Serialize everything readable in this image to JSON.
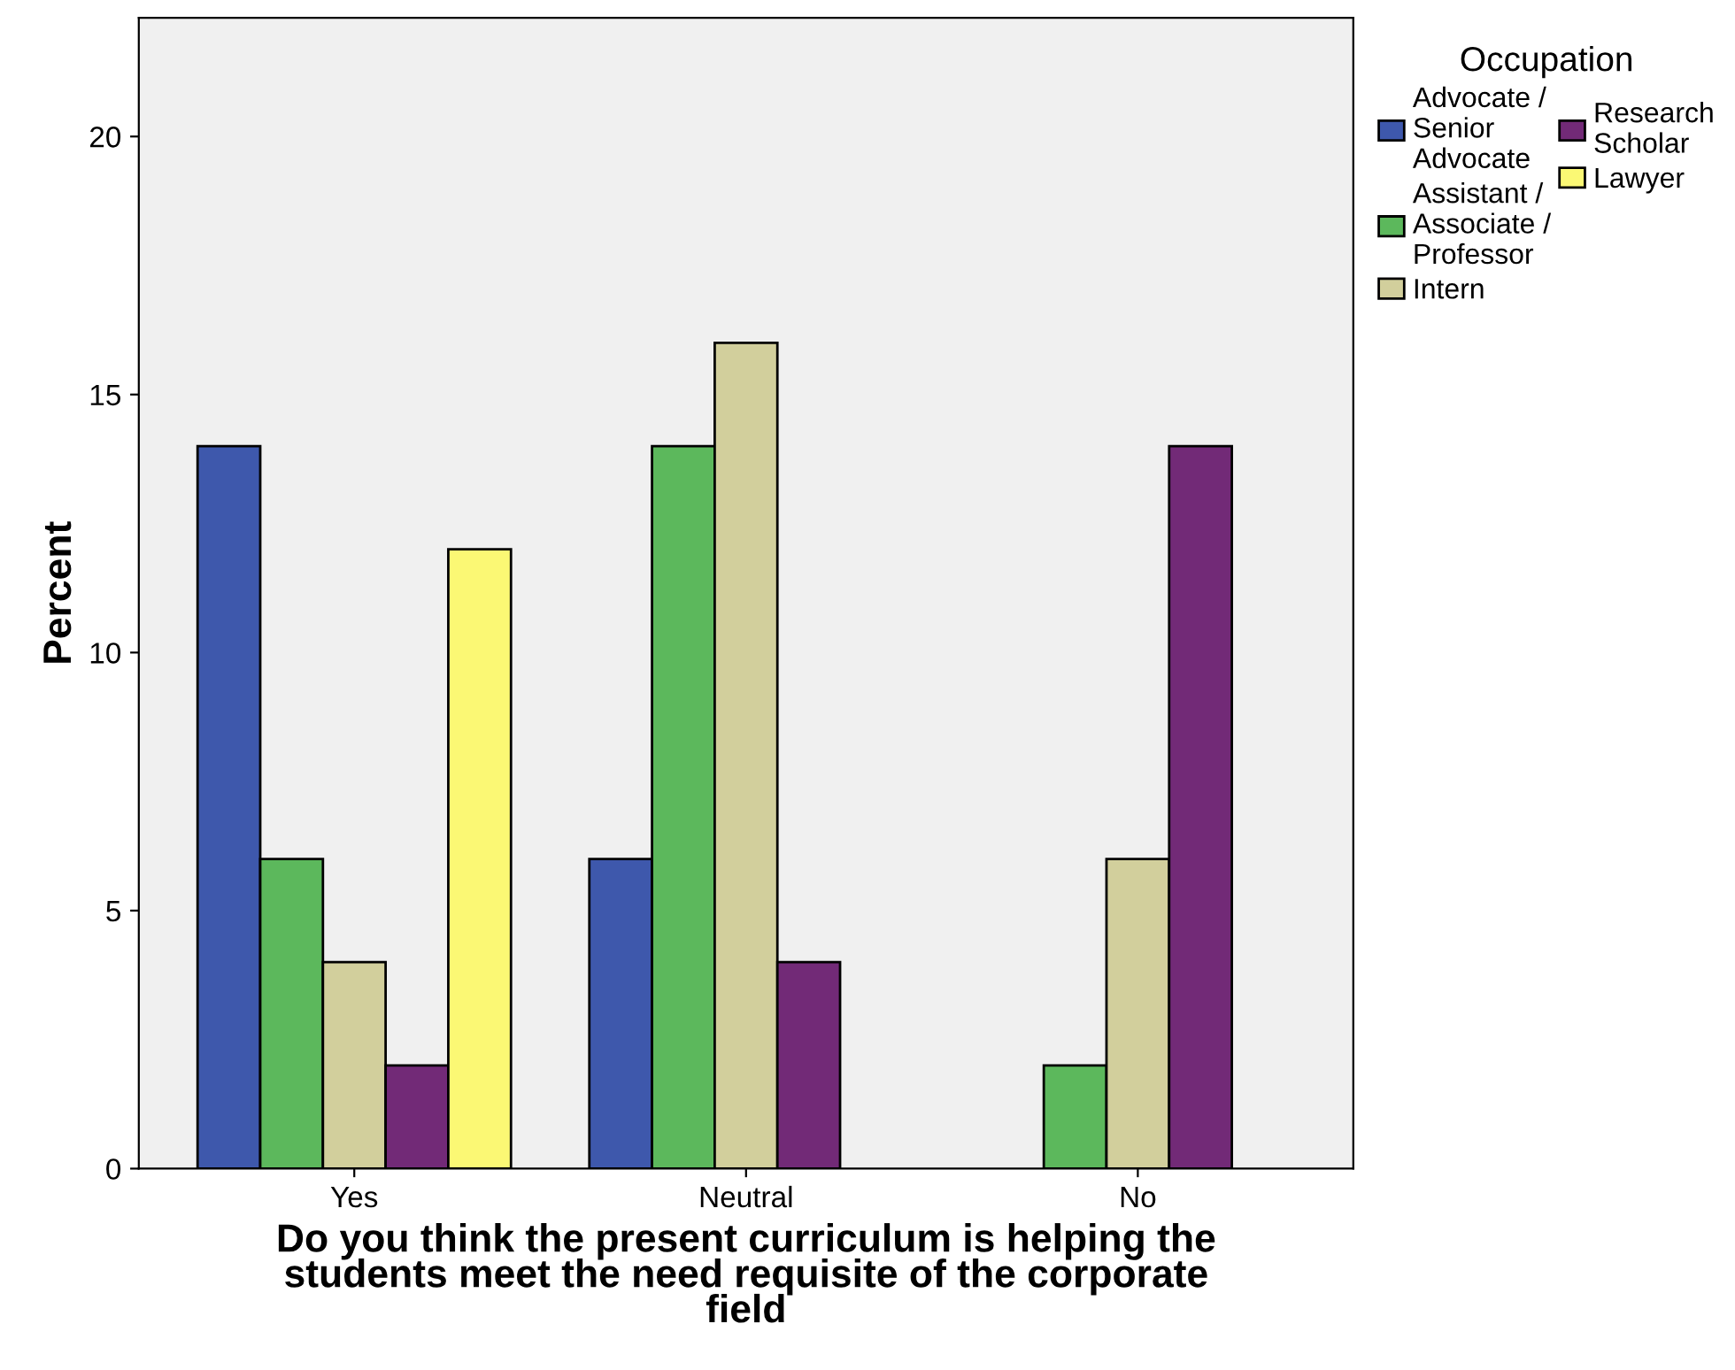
{
  "chart_data": {
    "type": "bar",
    "categories": [
      "Yes",
      "Neutral",
      "No"
    ],
    "series": [
      {
        "name": "Advocate / Senior Advocate",
        "color": "#3e58ac",
        "values": [
          14,
          6,
          null
        ]
      },
      {
        "name": "Assistant / Associate / Professor",
        "color": "#5cb85c",
        "values": [
          6,
          14,
          2
        ]
      },
      {
        "name": "Intern",
        "color": "#d2cf9c",
        "values": [
          4,
          16,
          6
        ]
      },
      {
        "name": "Research Scholar",
        "color": "#722a77",
        "values": [
          2,
          4,
          14
        ]
      },
      {
        "name": "Lawyer",
        "color": "#fbf874",
        "values": [
          12,
          null,
          null
        ]
      }
    ],
    "xlabel": "Do you think the present curriculum is helping the students meet the need requisite of the corporate field",
    "ylabel": "Percent",
    "legend_title": "Occupation",
    "legend": "top right",
    "ylim": [
      0,
      22.3
    ],
    "yticks": [
      0,
      5,
      10,
      15,
      20
    ],
    "grid": false
  }
}
